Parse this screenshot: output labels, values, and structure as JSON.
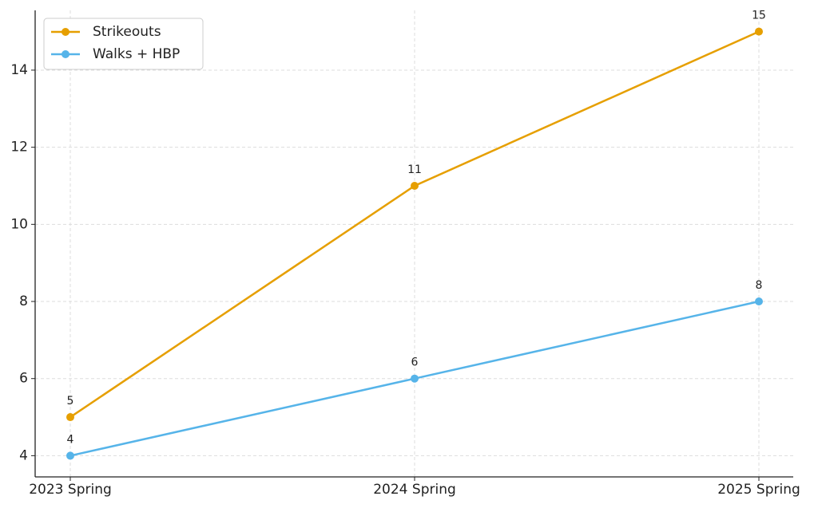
{
  "chart_data": {
    "type": "line",
    "categories": [
      "2023 Spring",
      "2024 Spring",
      "2025 Spring"
    ],
    "series": [
      {
        "name": "Strikeouts",
        "color": "#e69f00",
        "values": [
          5,
          11,
          15
        ]
      },
      {
        "name": "Walks + HBP",
        "color": "#56b4e9",
        "values": [
          4,
          6,
          8
        ]
      }
    ],
    "ylim": [
      3.45,
      15.55
    ],
    "yticks": [
      4,
      6,
      8,
      10,
      12,
      14
    ],
    "grid": true,
    "legend": "upper-left"
  }
}
